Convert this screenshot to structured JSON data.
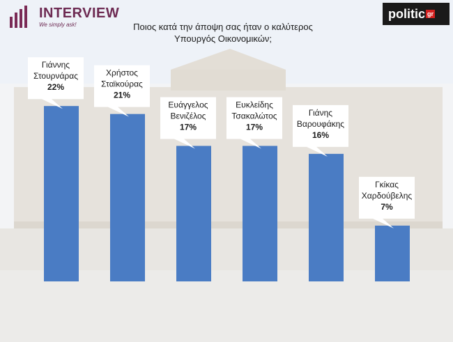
{
  "brand": {
    "name": "INTERVIEW",
    "tagline": "We simply ask!"
  },
  "logo": {
    "name": "politic",
    "suffix": "gr"
  },
  "title_line1": "Ποιος κατά την άποψη σας ήταν ο καλύτερος",
  "title_line2": "Υπουργός Οικονομικών;",
  "colors": {
    "bar": "#4a7cc4",
    "callout_bg": "#ffffff",
    "brand": "#6d2a52"
  },
  "chart_data": {
    "type": "bar",
    "title": "Ποιος κατά την άποψη σας ήταν ο καλύτερος Υπουργός Οικονομικών;",
    "categories": [
      [
        "Γιάννης",
        "Στουρνάρας"
      ],
      [
        "Χρήστος",
        "Σταϊκούρας"
      ],
      [
        "Ευάγγελος",
        "Βενιζέλος"
      ],
      [
        "Ευκλείδης",
        "Τσακαλώτος"
      ],
      [
        "Γιάνης",
        "Βαρουφάκης"
      ],
      [
        "Γκίκας",
        "Χαρδούβελης"
      ]
    ],
    "values": [
      22,
      21,
      17,
      17,
      16,
      7
    ],
    "value_labels": [
      "22%",
      "21%",
      "17%",
      "17%",
      "16%",
      "7%"
    ],
    "ylim": [
      0,
      27
    ],
    "grid": false,
    "legend": "none"
  }
}
